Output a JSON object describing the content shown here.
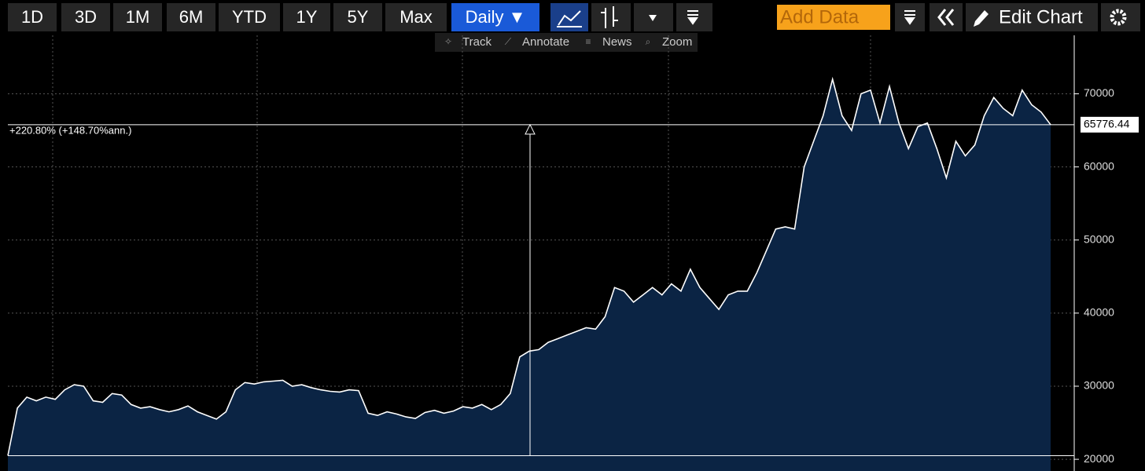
{
  "toolbar": {
    "ranges": [
      "1D",
      "3D",
      "1M",
      "6M",
      "YTD",
      "1Y",
      "5Y",
      "Max"
    ],
    "frequency": "Daily ▼",
    "add_data": "Add Data",
    "edit_chart": "Edit Chart"
  },
  "subtoolbar": [
    "Track",
    "Annotate",
    "News",
    "Zoom"
  ],
  "chart_data": {
    "type": "area",
    "annotation": "+220.80% (+148.70%ann.)",
    "color": "#0b2444",
    "line_color": "#ffffff",
    "grid": true,
    "ylim": [
      18400,
      78000
    ],
    "yticks": [
      20000,
      30000,
      40000,
      50000,
      60000,
      70000
    ],
    "values": [
      20500,
      27000,
      28500,
      28000,
      28500,
      28200,
      29500,
      30200,
      30000,
      28000,
      27800,
      29000,
      28800,
      27500,
      27000,
      27200,
      26800,
      26500,
      26800,
      27300,
      26500,
      26000,
      25500,
      26500,
      29500,
      30500,
      30300,
      30600,
      30700,
      30800,
      30000,
      30200,
      29800,
      29500,
      29300,
      29200,
      29500,
      29400,
      26300,
      26000,
      26500,
      26200,
      25800,
      25600,
      26400,
      26700,
      26300,
      26600,
      27200,
      27000,
      27500,
      26800,
      27500,
      29000,
      34000,
      34800,
      35000,
      36000,
      36500,
      37000,
      37500,
      38000,
      37800,
      39500,
      43500,
      43000,
      41500,
      42500,
      43500,
      42500,
      44000,
      43000,
      46000,
      43500,
      42000,
      40500,
      42500,
      43000,
      43000,
      45500,
      48500,
      51500,
      51800,
      51500,
      60000,
      63500,
      67000,
      72000,
      67000,
      65000,
      70000,
      70500,
      66000,
      71000,
      66000,
      62500,
      65500,
      66000,
      62500,
      58500,
      63500,
      61500,
      63000,
      67000,
      69500,
      68000,
      67000,
      70500,
      68500,
      67500,
      65776.44
    ]
  }
}
